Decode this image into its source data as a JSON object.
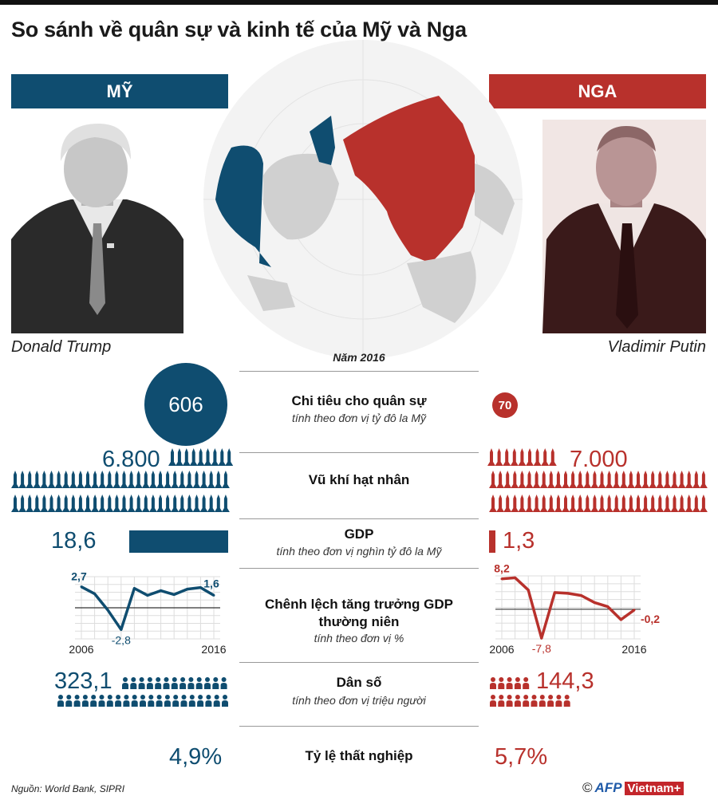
{
  "title": "So sánh về quân sự và kinh tế của Mỹ và Nga",
  "countries": {
    "us": {
      "label": "MỸ",
      "leader": "Donald Trump",
      "color": "#0f4d70"
    },
    "ru": {
      "label": "NGA",
      "leader": "Vladimir Putin",
      "color": "#b8312c"
    }
  },
  "year_label": "Năm 2016",
  "metrics": {
    "military": {
      "title": "Chi tiêu cho quân sự",
      "subtitle": "tính theo đơn vị tỷ đô la Mỹ",
      "us": "606",
      "ru": "70"
    },
    "nuclear": {
      "title": "Vũ khí hạt nhân",
      "us": "6.800",
      "ru": "7.000"
    },
    "gdp": {
      "title": "GDP",
      "subtitle": "tính theo đơn vị nghìn tỷ đô la Mỹ",
      "us": "18,6",
      "ru": "1,3"
    },
    "growth": {
      "title_line1": "Chênh lệch tăng trưởng GDP",
      "title_line2": "thường niên",
      "subtitle": "tính theo đơn vị %"
    },
    "population": {
      "title": "Dân số",
      "subtitle": "tính theo đơn vị triệu người",
      "us": "323,1",
      "ru": "144,3"
    },
    "unemployment": {
      "title": "Tỷ lệ thất nghiệp",
      "us": "4,9%",
      "ru": "5,7%"
    }
  },
  "chart_data": [
    {
      "type": "line",
      "series": [
        {
          "values": [
            2.7,
            1.8,
            -0.3,
            -2.8,
            2.5,
            1.6,
            2.2,
            1.7,
            2.4,
            2.6,
            1.6
          ]
        }
      ],
      "x": [
        2006,
        2007,
        2008,
        2009,
        2010,
        2011,
        2012,
        2013,
        2014,
        2015,
        2016
      ],
      "tick_labels": [
        "2006",
        "2016"
      ],
      "data_labels": {
        "first": "2,7",
        "min": "-2,8",
        "last": "1,6"
      },
      "ylim": [
        -4,
        4
      ],
      "grid": true,
      "color": "#0f4d70"
    },
    {
      "type": "line",
      "series": [
        {
          "values": [
            8.2,
            8.5,
            5.2,
            -7.8,
            4.5,
            4.3,
            3.7,
            1.8,
            0.7,
            -2.8,
            -0.2
          ]
        }
      ],
      "x": [
        2006,
        2007,
        2008,
        2009,
        2010,
        2011,
        2012,
        2013,
        2014,
        2015,
        2016
      ],
      "tick_labels": [
        "2006",
        "2016"
      ],
      "data_labels": {
        "first": "8,2",
        "min": "-7,8",
        "last": "-0,2"
      },
      "ylim": [
        -8,
        9
      ],
      "grid": true,
      "color": "#b8312c"
    }
  ],
  "source": "Nguồn: World Bank, SIPRI",
  "credit": {
    "copyright": "©",
    "afp": "AFP",
    "brand": "Vietnam+"
  }
}
